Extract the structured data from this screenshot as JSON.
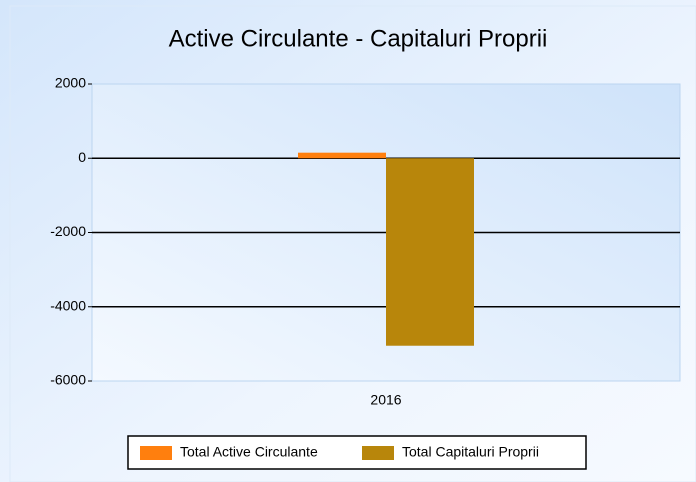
{
  "chart_data": {
    "type": "bar",
    "title": "Active Circulante - Capitaluri Proprii",
    "categories": [
      "2016"
    ],
    "series": [
      {
        "name": "Total Active Circulante",
        "color": "#ff7f0e",
        "values": [
          150
        ]
      },
      {
        "name": "Total Capitaluri Proprii",
        "color": "#b8860b",
        "values": [
          -5050
        ]
      }
    ],
    "ylim": [
      -6000,
      2000
    ],
    "yticks": [
      -6000,
      -4000,
      -2000,
      0,
      2000
    ],
    "grid": true,
    "legend": "bottom"
  }
}
